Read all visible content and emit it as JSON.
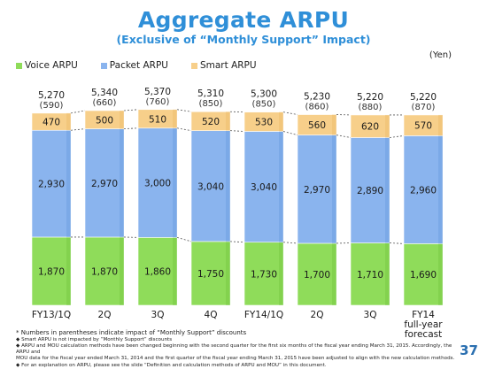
{
  "header": {
    "title": "Aggregate ARPU",
    "subtitle": "(Exclusive of “Monthly Support” Impact)",
    "unit": "(Yen)"
  },
  "legend": [
    {
      "label": "Voice ARPU",
      "color": "#8fdc5a"
    },
    {
      "label": "Packet ARPU",
      "color": "#8ab4ee"
    },
    {
      "label": "Smart ARPU",
      "color": "#f7cf8a"
    }
  ],
  "chart_data": {
    "type": "bar",
    "stacked": true,
    "categories": [
      "FY13/1Q",
      "2Q",
      "3Q",
      "4Q",
      "FY14/1Q",
      "2Q",
      "3Q",
      "FY14\nfull-year\nforecast"
    ],
    "series": [
      {
        "name": "Voice ARPU",
        "values": [
          1870,
          1870,
          1860,
          1750,
          1730,
          1700,
          1710,
          1690
        ]
      },
      {
        "name": "Packet ARPU",
        "values": [
          2930,
          2970,
          3000,
          3040,
          3040,
          2970,
          2890,
          2960
        ]
      },
      {
        "name": "Smart ARPU",
        "values": [
          470,
          500,
          510,
          520,
          530,
          560,
          620,
          570
        ]
      }
    ],
    "totals": [
      "5,270",
      "5,340",
      "5,370",
      "5,310",
      "5,300",
      "5,230",
      "5,220",
      "5,220"
    ],
    "monthly_support": [
      "(590)",
      "(660)",
      "(760)",
      "(850)",
      "(850)",
      "(860)",
      "(880)",
      "(870)"
    ],
    "legend_position": "top-left",
    "grid": false
  },
  "footnotes": {
    "main": "* Numbers in parentheses indicate impact of “Monthly Support” discounts",
    "items": [
      "◆ Smart ARPU is not impacted by “Monthly Support” discounts",
      "◆ ARPU and MOU calculation methods have been changed beginning with the second quarter for the first six months of the fiscal year ending March 31, 2015.  Accordingly, the ARPU and",
      "   MOU data for the fiscal year ended March 31, 2014 and the first quarter of the fiscal year ending March 31, 2015 have been adjusted to align with the new calculation methods.",
      "◆ For an explanation on ARPU,  please see the slide “Definition and calculation methods of ARPU and MOU” in this document."
    ]
  },
  "page_number": "37"
}
